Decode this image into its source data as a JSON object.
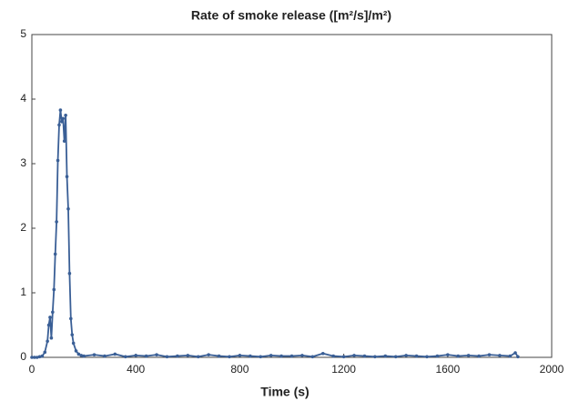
{
  "chart_data": {
    "type": "line",
    "title": "Rate of smoke release ([m²/s]/m²)",
    "x_label": "Time (s)",
    "x": [
      0,
      10,
      20,
      30,
      40,
      50,
      60,
      65,
      70,
      75,
      80,
      85,
      90,
      95,
      100,
      105,
      110,
      115,
      120,
      125,
      130,
      135,
      140,
      145,
      150,
      155,
      160,
      170,
      180,
      190,
      200,
      240,
      280,
      320,
      360,
      400,
      440,
      480,
      520,
      560,
      600,
      640,
      680,
      720,
      760,
      800,
      840,
      880,
      920,
      960,
      1000,
      1040,
      1080,
      1120,
      1160,
      1200,
      1240,
      1280,
      1320,
      1360,
      1400,
      1440,
      1480,
      1520,
      1560,
      1600,
      1640,
      1680,
      1720,
      1760,
      1800,
      1840,
      1860,
      1870
    ],
    "series": [
      {
        "color": "#3a5f96",
        "values": [
          0,
          0,
          0,
          0.01,
          0.02,
          0.08,
          0.25,
          0.5,
          0.62,
          0.3,
          0.7,
          1.05,
          1.6,
          2.1,
          3.05,
          3.6,
          3.83,
          3.65,
          3.7,
          3.35,
          3.75,
          2.8,
          2.3,
          1.3,
          0.6,
          0.35,
          0.22,
          0.1,
          0.05,
          0.03,
          0.02,
          0.04,
          0.02,
          0.05,
          0.01,
          0.03,
          0.02,
          0.04,
          0.01,
          0.02,
          0.03,
          0.01,
          0.04,
          0.02,
          0.01,
          0.03,
          0.02,
          0.01,
          0.03,
          0.02,
          0.02,
          0.03,
          0.01,
          0.06,
          0.02,
          0.01,
          0.03,
          0.02,
          0.01,
          0.02,
          0.01,
          0.03,
          0.02,
          0.01,
          0.02,
          0.04,
          0.02,
          0.03,
          0.02,
          0.04,
          0.03,
          0.02,
          0.07,
          0.01
        ]
      }
    ],
    "xlim": [
      0,
      2000
    ],
    "xticks": [
      0,
      400,
      800,
      1200,
      1600,
      2000
    ],
    "ylim": [
      0,
      5
    ],
    "yticks": [
      0,
      1,
      2,
      3,
      4,
      5
    ]
  }
}
